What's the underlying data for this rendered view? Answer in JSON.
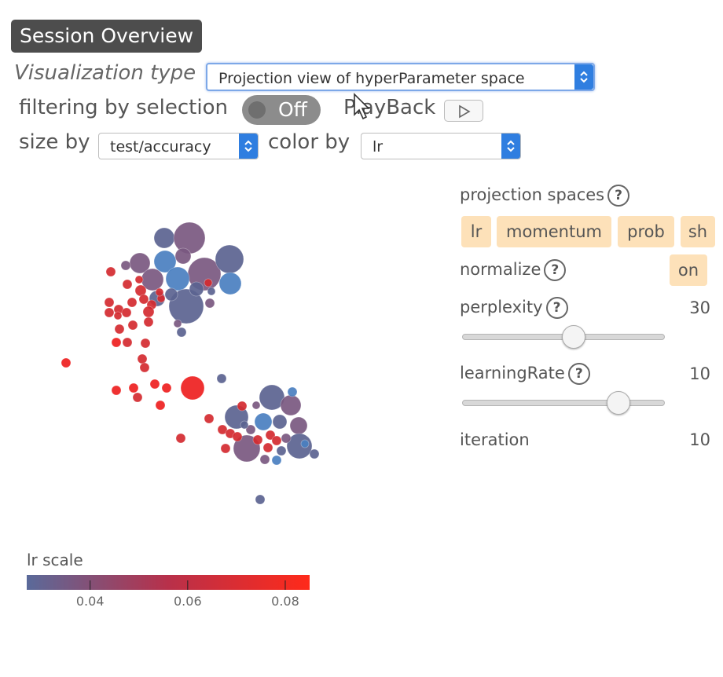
{
  "header": {
    "title": "Session Overview"
  },
  "controls": {
    "visualization_type_label": "Visualization type",
    "visualization_type_value": "Projection view of hyperParameter space",
    "filtering_label": "filtering by selection",
    "filtering_toggle_value": "Off",
    "playback_label": "PlayBack",
    "size_by_label": "size by",
    "size_by_value": "test/accuracy",
    "color_by_label": "color by",
    "color_by_value": "lr"
  },
  "projection": {
    "spaces_label": "projection spaces",
    "spaces": [
      "lr",
      "momentum",
      "prob",
      "sh"
    ],
    "normalize_label": "normalize",
    "normalize_value": "on",
    "perplexity_label": "perplexity",
    "perplexity_value": "30",
    "perplexity_fraction": 0.55,
    "learning_rate_label": "learningRate",
    "learning_rate_value": "10",
    "learning_rate_fraction": 0.77,
    "iteration_label": "iteration",
    "iteration_value": "10"
  },
  "legend": {
    "title": "lr scale",
    "ticks": [
      "0.04",
      "0.06",
      "0.08"
    ],
    "tick_values": [
      0.04,
      0.06,
      0.08
    ],
    "domain": [
      0.027,
      0.085
    ],
    "color_low": "#5a6a9a",
    "color_high": "#ff2a1a"
  },
  "colors": {
    "accent_blue": "#2f7ee0",
    "chip_bg": "#fde1b9",
    "badge_bg": "#4d4d4d",
    "point_blue": "#4a7fc0",
    "point_slate": "#5b6390",
    "point_purple": "#7a5880",
    "point_red": "#d42a30",
    "point_bright_red": "#ee2020"
  }
}
